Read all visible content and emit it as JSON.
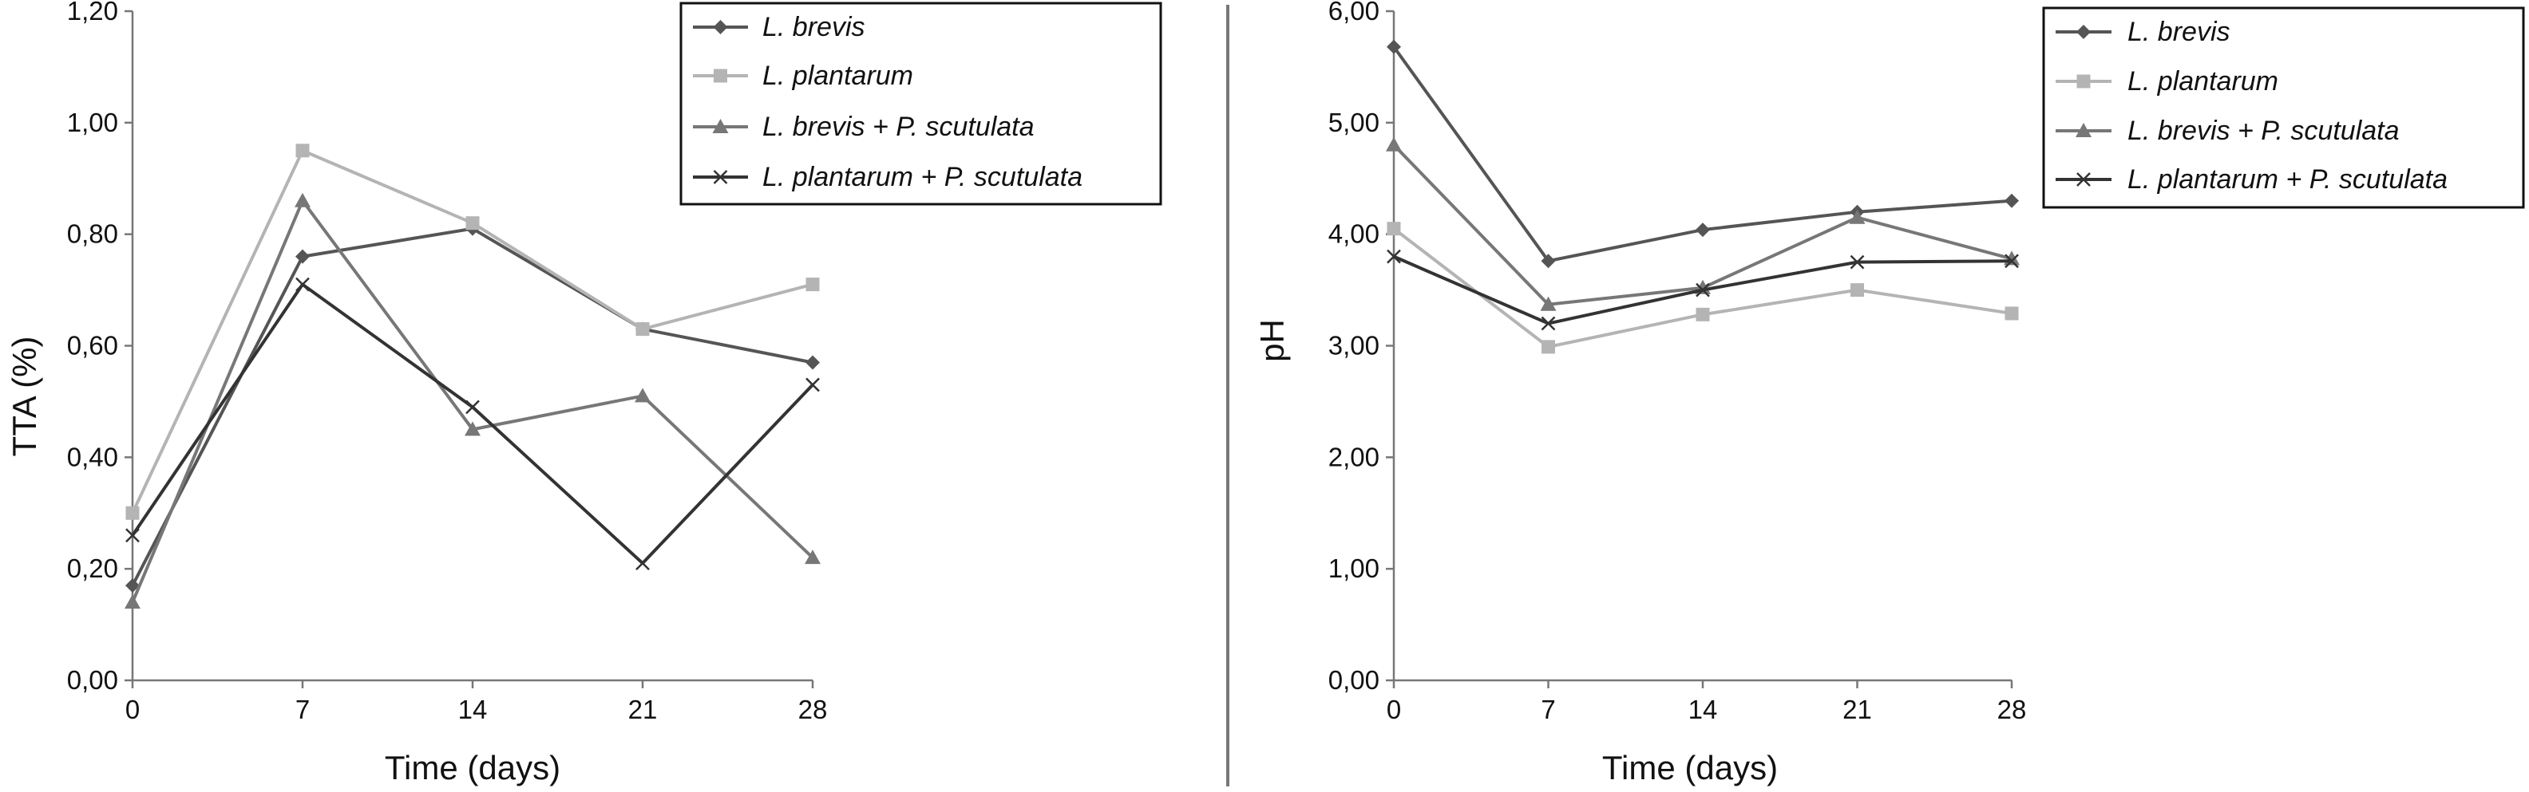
{
  "colors": {
    "l_brevis": "#555555",
    "l_plantarum": "#b4b4b4",
    "l_brevis_p_scutulata": "#777777",
    "l_plantarum_p_scutulata": "#333333",
    "axis": "#777777",
    "divider": "#777777"
  },
  "chart_data": [
    {
      "type": "line",
      "xlabel": "Time (days)",
      "ylabel": "TTA (%)",
      "x": [
        0,
        7,
        14,
        21,
        28
      ],
      "xticks": [
        "0",
        "7",
        "14",
        "21",
        "28"
      ],
      "yticks": [
        "0,00",
        "0,20",
        "0,40",
        "0,60",
        "0,80",
        "1,00",
        "1,20"
      ],
      "ylim": [
        0,
        1.2
      ],
      "legend_position": "top-right",
      "series": [
        {
          "name": "L. brevis",
          "marker": "diamond",
          "color_key": "l_brevis",
          "values": [
            0.17,
            0.76,
            0.81,
            0.63,
            0.57
          ]
        },
        {
          "name": "L. plantarum",
          "marker": "square",
          "color_key": "l_plantarum",
          "values": [
            0.3,
            0.95,
            0.82,
            0.63,
            0.71
          ]
        },
        {
          "name": "L. brevis + P. scutulata",
          "marker": "triangle",
          "color_key": "l_brevis_p_scutulata",
          "values": [
            0.14,
            0.86,
            0.45,
            0.51,
            0.22
          ]
        },
        {
          "name": "L. plantarum + P. scutulata",
          "marker": "x",
          "color_key": "l_plantarum_p_scutulata",
          "values": [
            0.26,
            0.71,
            0.49,
            0.21,
            0.53
          ]
        }
      ]
    },
    {
      "type": "line",
      "xlabel": "Time (days)",
      "ylabel": "pH",
      "x": [
        0,
        7,
        14,
        21,
        28
      ],
      "xticks": [
        "0",
        "7",
        "14",
        "21",
        "28"
      ],
      "yticks": [
        "0,00",
        "1,00",
        "2,00",
        "3,00",
        "4,00",
        "5,00",
        "6,00"
      ],
      "ylim": [
        0,
        6
      ],
      "legend_position": "top-right",
      "series": [
        {
          "name": "L. brevis",
          "marker": "diamond",
          "color_key": "l_brevis",
          "values": [
            5.68,
            3.76,
            4.04,
            4.2,
            4.3
          ]
        },
        {
          "name": "L. plantarum",
          "marker": "square",
          "color_key": "l_plantarum",
          "values": [
            4.05,
            2.99,
            3.28,
            3.5,
            3.29
          ]
        },
        {
          "name": "L. brevis + P. scutulata",
          "marker": "triangle",
          "color_key": "l_brevis_p_scutulata",
          "values": [
            4.8,
            3.37,
            3.52,
            4.15,
            3.78
          ]
        },
        {
          "name": "L. plantarum + P. scutulata",
          "marker": "x",
          "color_key": "l_plantarum_p_scutulata",
          "values": [
            3.8,
            3.2,
            3.5,
            3.75,
            3.76
          ]
        }
      ]
    }
  ]
}
